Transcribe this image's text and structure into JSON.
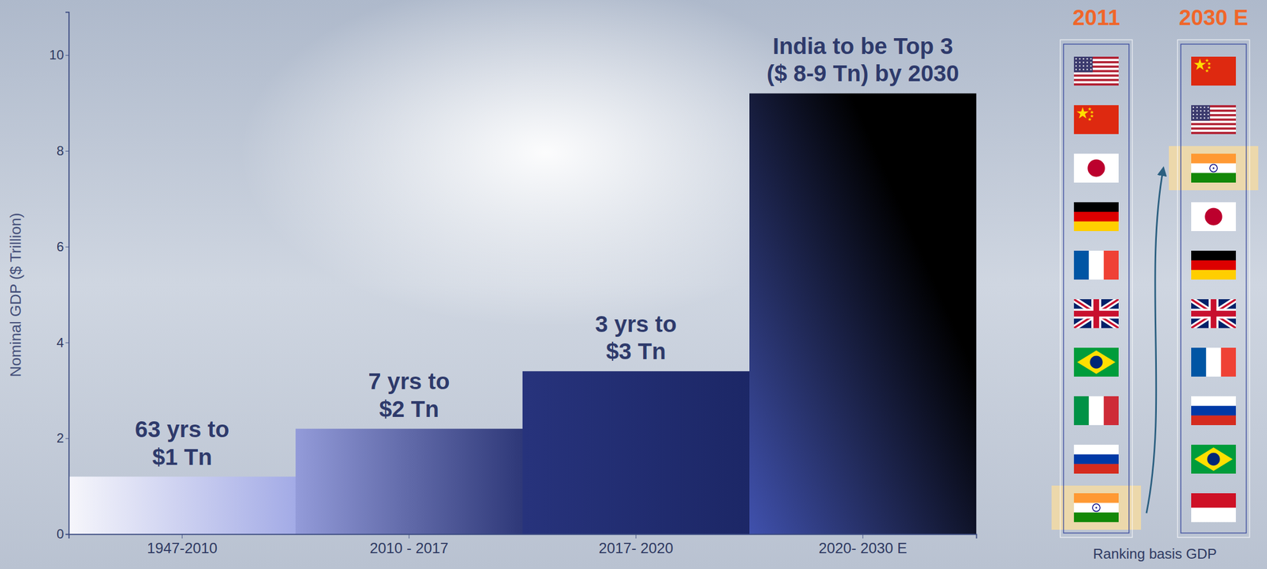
{
  "chart_data": {
    "type": "bar",
    "y_label": "Nominal GDP ($ Trillion)",
    "categories": [
      "1947-2010",
      "2010 - 2017",
      "2017- 2020",
      "2020- 2030 E"
    ],
    "values": [
      1.2,
      2.2,
      3.4,
      9.2
    ],
    "colors": [
      "#a3abe6",
      "#2e3878",
      "#1c2766",
      "#000000"
    ],
    "ylim": [
      0,
      10.9
    ],
    "yticks": [
      0,
      2,
      4,
      6,
      8,
      10
    ],
    "grid": false,
    "annotations": [
      [
        "63 yrs to",
        "$1 Tn"
      ],
      [
        "7 yrs to",
        "$2 Tn"
      ],
      [
        "3 yrs to",
        "$3 Tn"
      ],
      [
        "India to be Top 3",
        "($ 8-9 Tn) by 2030"
      ]
    ]
  },
  "ranking": {
    "columns": [
      "2011",
      "2030 E"
    ],
    "caption": "Ranking basis GDP"
  }
}
